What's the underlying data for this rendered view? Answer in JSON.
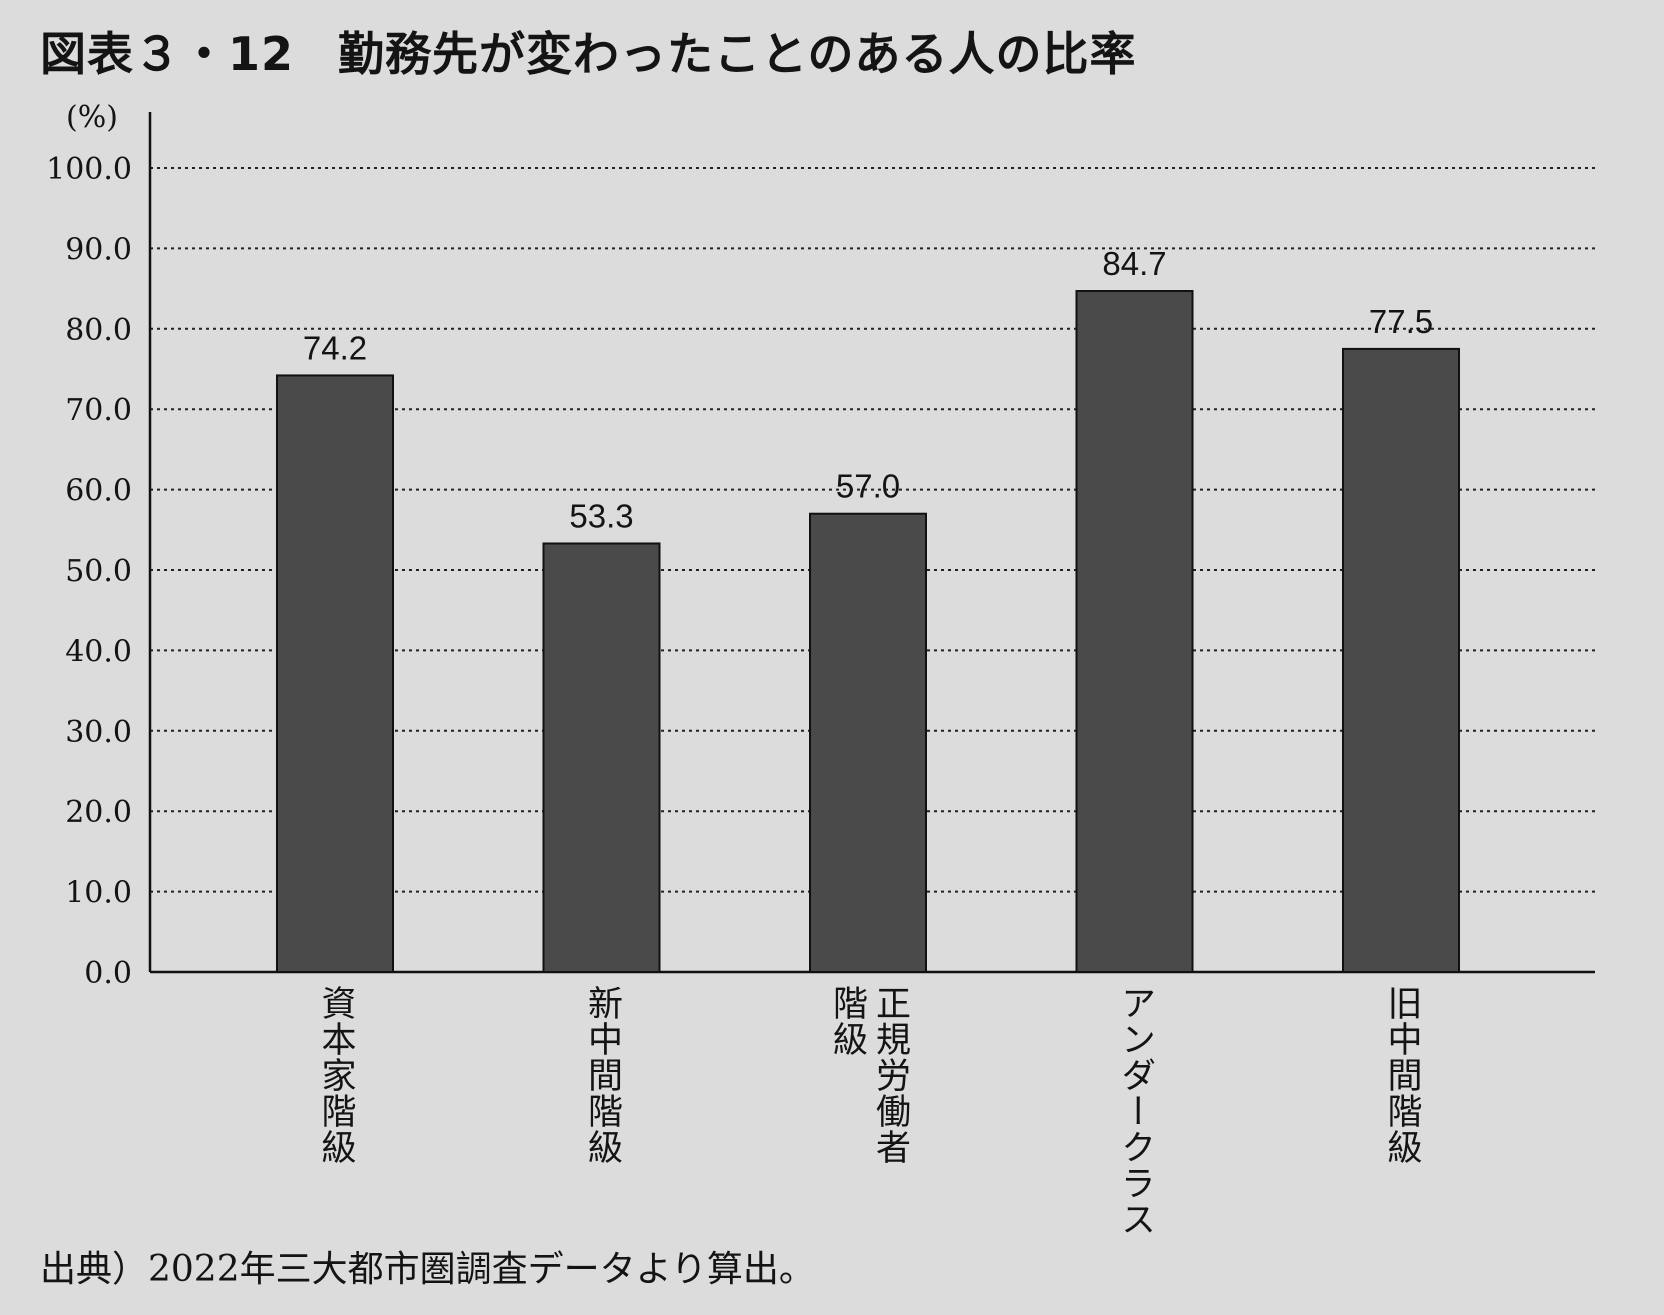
{
  "chart_data": {
    "type": "bar",
    "title_number": "図表３・12",
    "title": "勤務先が変わったことのある人の比率",
    "ylabel": "(%)",
    "ylim": [
      0,
      100
    ],
    "yticks": [
      "100.0",
      "90.0",
      "80.0",
      "70.0",
      "60.0",
      "50.0",
      "40.0",
      "30.0",
      "20.0",
      "10.0",
      "0.0"
    ],
    "categories": [
      "資本家階級",
      "新中間階級",
      "正規労働者階級",
      "アンダークラス",
      "旧中間階級"
    ],
    "category_labels": [
      "資本家階級",
      "新中間階級",
      "正規労働者\n階級",
      "アンダークラス",
      "旧中間階級"
    ],
    "values": [
      74.2,
      53.3,
      57.0,
      84.7,
      77.5
    ],
    "value_labels": [
      "74.2",
      "53.3",
      "57.0",
      "84.7",
      "77.5"
    ],
    "grid": true,
    "bar_color": "#4a4a4a",
    "source": "出典）2022年三大都市圏調査データより算出。"
  }
}
